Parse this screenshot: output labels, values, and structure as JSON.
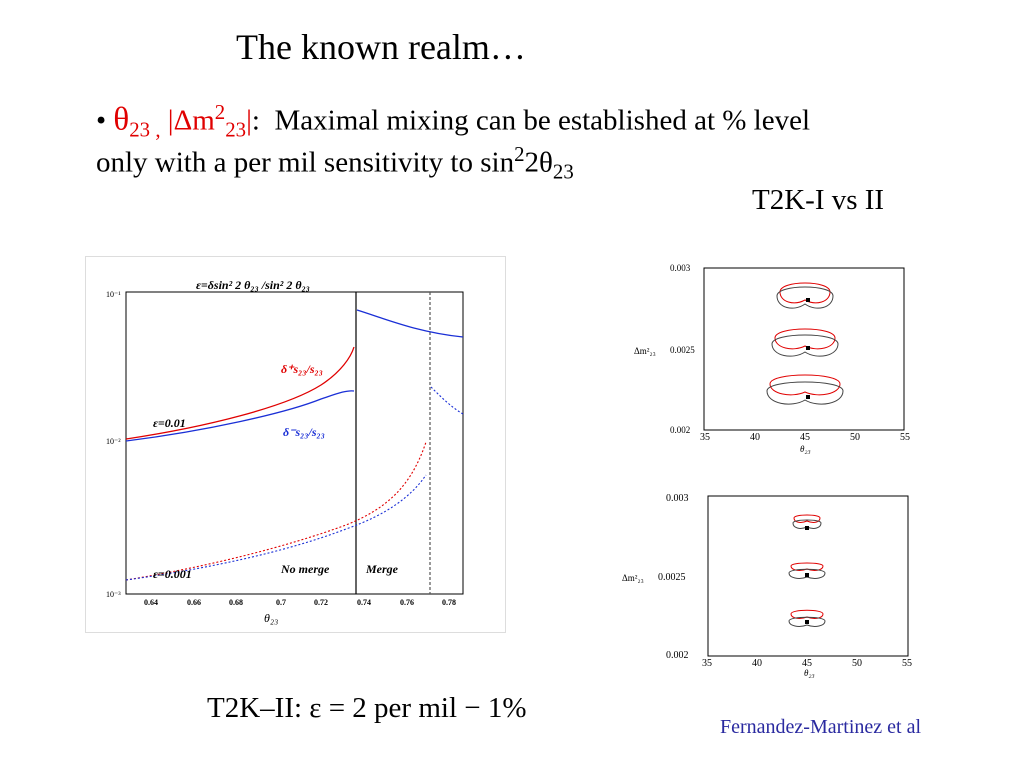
{
  "slide": {
    "title": "The known realm…",
    "bullet": {
      "marker": "•",
      "theta": "θ",
      "sub23a": "23 ,",
      "dm_prefix": "|Δm",
      "sup2": "2",
      "sub23b": "23",
      "bar_colon": "|",
      "colon": ":",
      "text1": "Maximal mixing can be established at % level",
      "text2": "only with a per mil sensitivity to sin",
      "sup2b": "2",
      "text3": "2θ",
      "sub23c": "23"
    },
    "right_label": "T2K-I vs II",
    "bottom_formula": "T2K–II:  ε  = 2 per mil − 1%",
    "credit": "Fernandez-Martinez et al"
  },
  "left_plot": {
    "header": "ε=δsin² 2 θ₂₃ /sin² 2 θ₂₃",
    "xlabel": "θ₂₃",
    "x_ticks": [
      "0.64",
      "0.66",
      "0.68",
      "0.7",
      "0.72",
      "0.74",
      "0.76",
      "0.78"
    ],
    "y_ticks": [
      "10⁻¹",
      "10⁻²",
      "10⁻³"
    ],
    "labels": {
      "eps1": "ε=0.01",
      "eps2": "ε=0.001",
      "dplus": "δ⁺s₂₃/s₂₃",
      "dminus": "δ⁻s₂₃/s₂₃",
      "nomerge": "No merge",
      "merge": "Merge"
    },
    "colors": {
      "plus": "#e00000",
      "minus": "#1a2fd6"
    }
  },
  "plot_a": {
    "ylabel": "Δm²₂₃",
    "xlabel": "θ₂₃",
    "y_ticks": [
      "0.003",
      "0.0025",
      "0.002"
    ],
    "x_ticks": [
      "35",
      "40",
      "45",
      "50",
      "55"
    ]
  },
  "plot_b": {
    "ylabel": "Δm²₂₃",
    "xlabel": "θ₂₃",
    "y_ticks": [
      "0.003",
      "0.0025",
      "0.002"
    ],
    "x_ticks": [
      "35",
      "40",
      "45",
      "50",
      "55"
    ]
  }
}
